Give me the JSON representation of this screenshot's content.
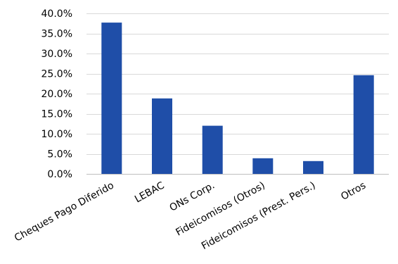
{
  "chart_data": {
    "type": "bar",
    "categories": [
      "Cheques Pago Diferido",
      "LEBAC",
      "ONs Corp.",
      "Fideicomisos (Otros)",
      "Fideicomisos (Prest. Pers.)",
      "Otros"
    ],
    "values": [
      37.7,
      18.8,
      12.0,
      3.9,
      3.2,
      24.6
    ],
    "ylim": [
      0,
      40
    ],
    "yticks": [
      0,
      5,
      10,
      15,
      20,
      25,
      30,
      35,
      40
    ],
    "ytick_labels": [
      "0.0%",
      "5.0%",
      "10.0%",
      "15.0%",
      "20.0%",
      "25.0%",
      "30.0%",
      "35.0%",
      "40.0%"
    ],
    "grid": true,
    "bar_color": "#1f4ea8",
    "grid_color": "#d9d9d9",
    "axis_color": "#bfbfbf"
  }
}
